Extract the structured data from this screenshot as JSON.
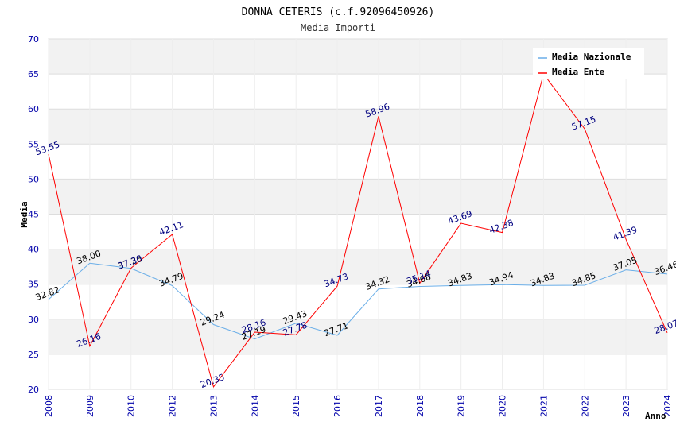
{
  "chart_data": {
    "type": "line",
    "title": "DONNA CETERIS (c.f.92096450926)",
    "subtitle": "Media Importi",
    "xlabel": "Anno",
    "ylabel": "Media",
    "ylim": [
      20,
      70
    ],
    "yticks": [
      20,
      25,
      30,
      35,
      40,
      45,
      50,
      55,
      60,
      65,
      70
    ],
    "grid": true,
    "legend_position": "top-right",
    "categories": [
      "2008",
      "2009",
      "2010",
      "2012",
      "2013",
      "2014",
      "2015",
      "2016",
      "2017",
      "2018",
      "2019",
      "2020",
      "2021",
      "2022",
      "2023",
      "2024"
    ],
    "series": [
      {
        "name": "Media Nazionale",
        "color": "#6aaee8",
        "label_color": "#000000",
        "values": [
          32.82,
          38.0,
          37.26,
          34.79,
          29.24,
          27.19,
          29.43,
          27.71,
          34.32,
          34.68,
          34.83,
          34.94,
          34.83,
          34.85,
          37.05,
          36.46
        ],
        "labels": [
          "32.82",
          "38.00",
          "37.26",
          "34.79",
          "29.24",
          "27.19",
          "29.43",
          "27.71",
          "34.32",
          "34.68",
          "34.83",
          "34.94",
          "34.83",
          "34.85",
          "37.05",
          "36.46"
        ]
      },
      {
        "name": "Media Ente",
        "color": "#ff0000",
        "label_color": "#000080",
        "values": [
          53.55,
          26.16,
          37.3,
          42.11,
          20.35,
          28.16,
          27.78,
          34.73,
          58.96,
          35.14,
          43.69,
          42.38,
          65.0,
          57.15,
          41.39,
          28.07
        ],
        "labels": [
          "53.55",
          "26.16",
          "37.30",
          "42.11",
          "20.35",
          "28.16",
          "27.78",
          "34.73",
          "58.96",
          "35.14",
          "43.69",
          "42.38",
          "",
          "57.15",
          "41.39",
          "28.07"
        ]
      }
    ]
  }
}
